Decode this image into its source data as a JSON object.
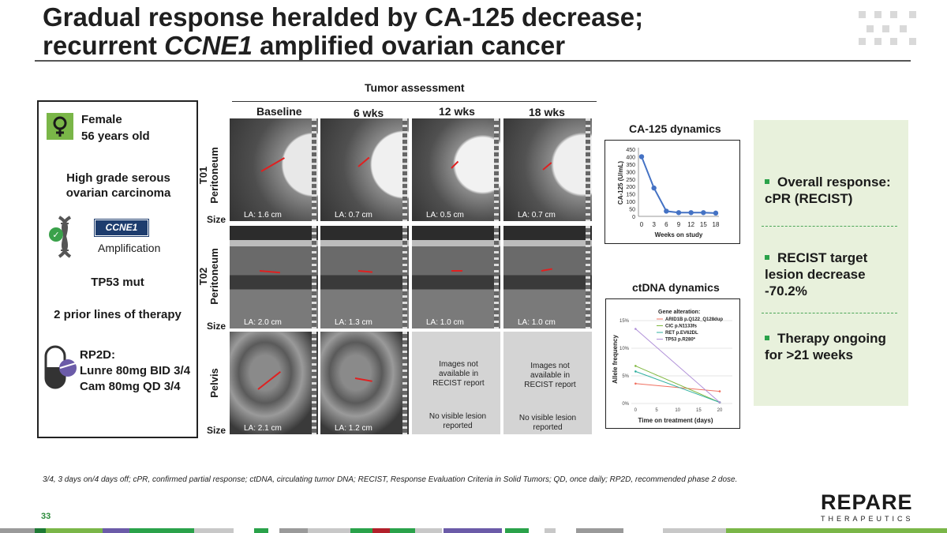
{
  "slide": {
    "title_line1": "Gradual response heralded by CA-125 decrease;",
    "title_line2_pre": "recurrent ",
    "title_line2_italic": "CCNE1",
    "title_line2_post": " amplified ovarian cancer",
    "page_number": "33",
    "footnote": "3/4, 3 days on/4 days off; cPR, confirmed partial response; ctDNA, circulating tumor DNA; RECIST, Response Evaluation Criteria in Solid Tumors; QD, once daily; RP2D, recommended phase 2 dose.",
    "logo_main": "REPARE",
    "logo_sub": "THERAPEUTICS"
  },
  "patient": {
    "sex": "Female",
    "age": "56 years old",
    "diagnosis": "High grade serous ovarian carcinoma",
    "gene_badge": "CCNE1",
    "gene_status": "Amplification",
    "mutation": "TP53 mut",
    "prior_lines": "2 prior lines of therapy",
    "dose_title": "RP2D:",
    "dose_line1": "Lunre 80mg BID 3/4",
    "dose_line2": "Cam 80mg QD 3/4",
    "icons": [
      "female-icon",
      "dna-icon",
      "capsule-icon"
    ]
  },
  "tumor": {
    "header": "Tumor assessment",
    "columns": [
      "Baseline",
      "6 wks",
      "12 wks",
      "18 wks"
    ],
    "size_label": "Size",
    "rows": [
      {
        "code": "T01",
        "site": "Peritoneum",
        "sizes": [
          "LA: 1.6 cm",
          "LA: 0.7 cm",
          "LA: 0.5 cm",
          "LA: 0.7 cm"
        ]
      },
      {
        "code": "T02",
        "site": "Peritoneum",
        "sizes": [
          "LA: 2.0 cm",
          "LA: 1.3 cm",
          "LA: 1.0 cm",
          "LA: 1.0 cm"
        ]
      },
      {
        "code": "",
        "site": "Pelvis",
        "sizes": [
          "LA: 2.1 cm",
          "LA: 1.2 cm"
        ]
      }
    ],
    "not_available": "Images not available in RECIST report",
    "no_lesion": "No visible lesion reported"
  },
  "ca125": {
    "title": "CA-125 dynamics",
    "chart_data": {
      "type": "line",
      "x": [
        0,
        3,
        6,
        9,
        12,
        15,
        18
      ],
      "values": [
        400,
        190,
        35,
        25,
        25,
        25,
        22
      ],
      "xlabel": "Weeks on study",
      "ylabel": "CA-125 (U/mL)",
      "ylim": [
        0,
        450
      ],
      "yticks": [
        "0",
        "50",
        "100",
        "150",
        "200",
        "250",
        "300",
        "350",
        "400",
        "450"
      ],
      "xticks": [
        "0",
        "3",
        "6",
        "9",
        "12",
        "15",
        "18"
      ],
      "color": "#4472c4"
    }
  },
  "ctdna": {
    "title": "ctDNA dynamics",
    "chart_data": {
      "type": "line",
      "xlabel": "Time on treatment (days)",
      "ylabel": "Allele frequency",
      "xticks": [
        "0",
        "5",
        "10",
        "15",
        "20"
      ],
      "yticks": [
        "0%",
        "5%",
        "10%",
        "15%"
      ],
      "xlim": [
        -1,
        23
      ],
      "ylim": [
        0,
        16
      ],
      "legend_title": "Gene alteration:",
      "series": [
        {
          "name": "ARID1B p.Q122_Q128dup",
          "color": "#f07060",
          "x": [
            0,
            20
          ],
          "y": [
            3.6,
            2.2
          ]
        },
        {
          "name": "CIC p.N1133fs",
          "color": "#80b840",
          "x": [
            0,
            20
          ],
          "y": [
            6.8,
            0.2
          ]
        },
        {
          "name": "RET p.EV62DL",
          "color": "#30b0a0",
          "x": [
            0,
            20
          ],
          "y": [
            5.8,
            0.2
          ]
        },
        {
          "name": "TP53 p.R280*",
          "color": "#b090d8",
          "x": [
            0,
            20
          ],
          "y": [
            13.5,
            0.2
          ]
        }
      ]
    }
  },
  "response": {
    "item1": "Overall response: cPR (RECIST)",
    "item2": "RECIST target lesion decrease -70.2%",
    "item3": "Therapy ongoing for >21 weeks",
    "accent": "#2aa24a"
  }
}
